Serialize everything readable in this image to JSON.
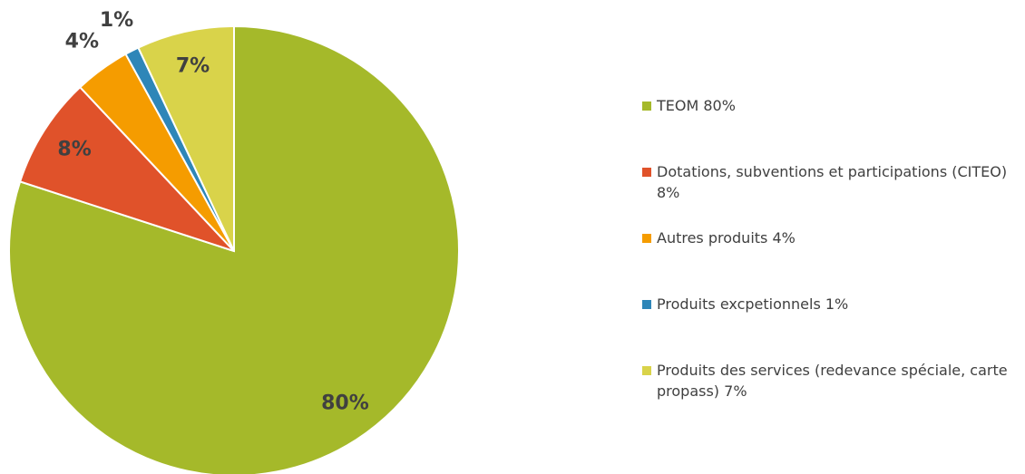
{
  "chart_data": {
    "type": "pie",
    "categories": [
      "TEOM 80%",
      "Dotations, subventions et participations (CITEO) 8%",
      "Autres produits 4%",
      "Produits excpetionnels 1%",
      "Produits des services (redevance spéciale, carte propass) 7%"
    ],
    "values": [
      80,
      8,
      4,
      1,
      7
    ],
    "value_labels": [
      "80%",
      "8%",
      "4%",
      "1%",
      "7%"
    ],
    "colors": [
      "#a5b92a",
      "#e0522a",
      "#f59c00",
      "#2e86b8",
      "#d9d34a"
    ],
    "legend": "right"
  }
}
